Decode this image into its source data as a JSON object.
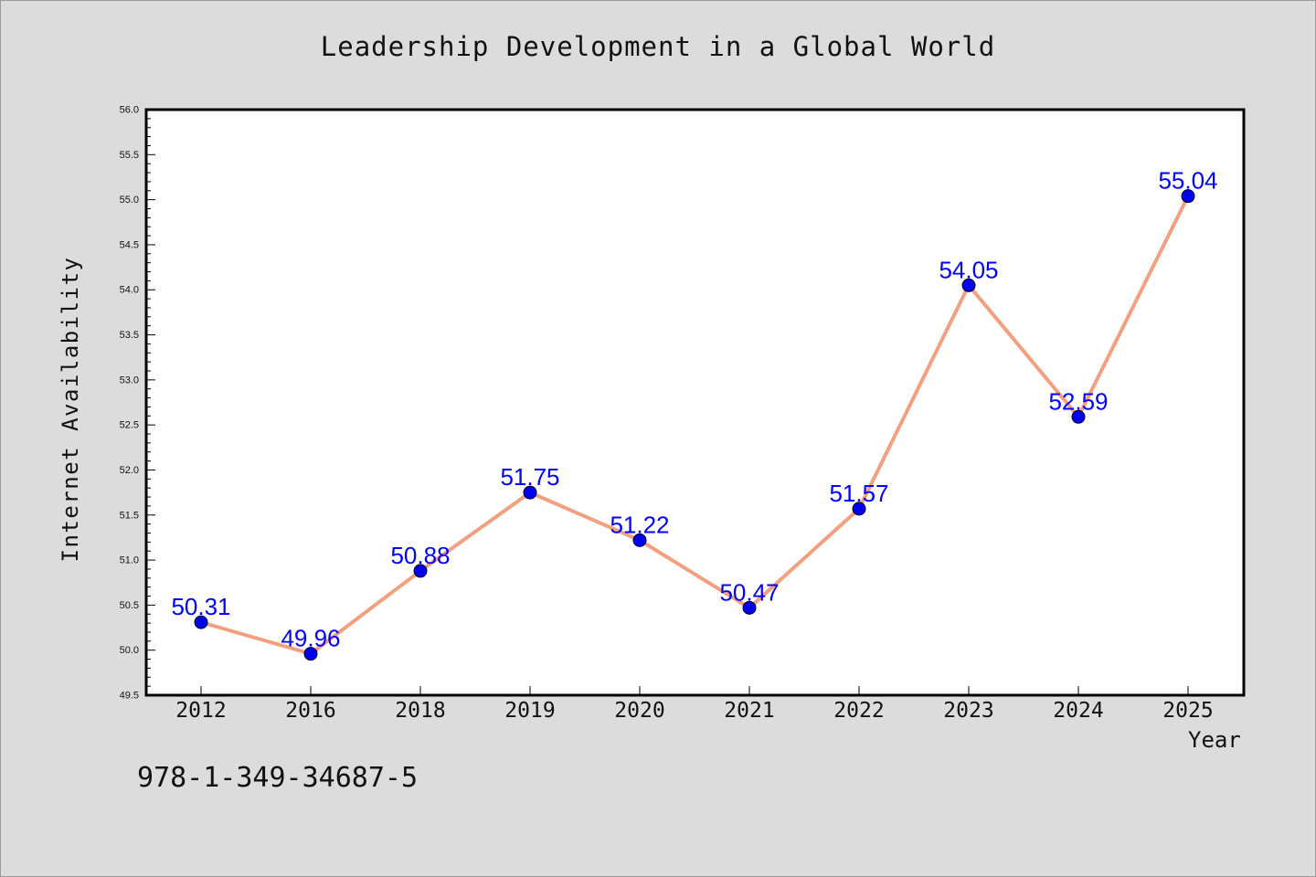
{
  "chart_data": {
    "type": "line",
    "title": "Leadership Development in a Global World",
    "xlabel": "Year",
    "ylabel": "Internet Availability",
    "categories": [
      "2012",
      "2016",
      "2018",
      "2019",
      "2020",
      "2021",
      "2022",
      "2023",
      "2024",
      "2025"
    ],
    "series": [
      {
        "values": [
          50.31,
          49.96,
          50.88,
          51.75,
          51.22,
          50.47,
          51.57,
          54.05,
          52.59,
          55.04
        ],
        "labels": [
          "50.31",
          "49.96",
          "50.88",
          "51.75",
          "51.22",
          "50.47",
          "51.57",
          "54.05",
          "52.59",
          "55.04"
        ],
        "line_color": "#f4a07e",
        "marker_color": "#0000ee",
        "label_color": "#0000ff"
      }
    ],
    "ylim": [
      49.5,
      56.0
    ],
    "yticks": [
      "49.5",
      "50.0",
      "50.5",
      "51.0",
      "51.5",
      "52.0",
      "52.5",
      "53.0",
      "53.5",
      "54.0",
      "54.5",
      "55.0",
      "55.5",
      "56.0"
    ],
    "grid": false,
    "legend": "none"
  },
  "footer": {
    "isbn": "978-1-349-34687-5"
  },
  "colors": {
    "background": "#dcdcdc",
    "plot_background": "#ffffff",
    "axis": "#000000"
  }
}
